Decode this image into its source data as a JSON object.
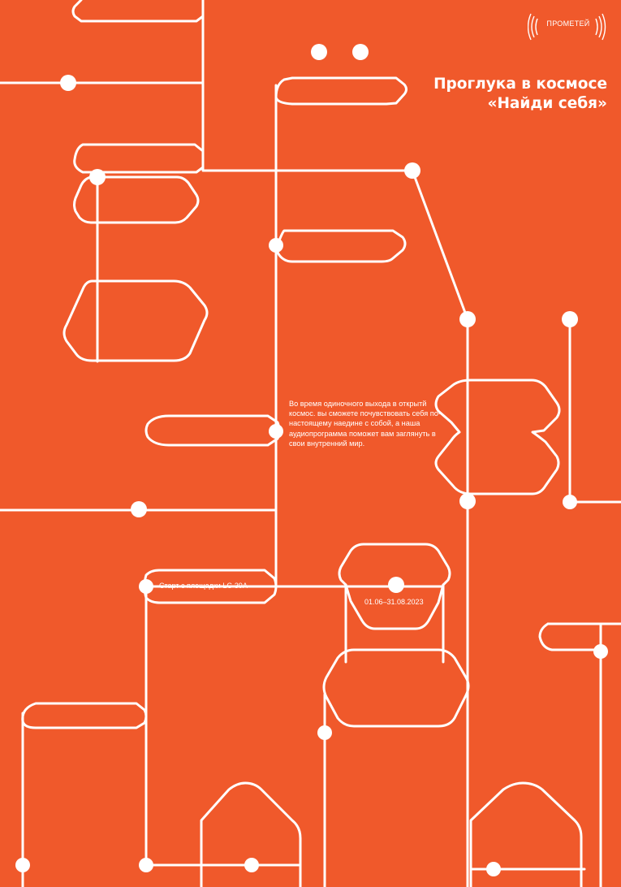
{
  "poster": {
    "background_color": "#f0592b",
    "line_color": "#ffffff",
    "logo": {
      "text": "ПРОМЕТЕЙ",
      "icon": "broadcast-waves-icon"
    },
    "title_line1": "Проглука в космосе",
    "title_line2": "«Найди себя»",
    "description": "Во время одиночного выхода в открытй космос. вы сможете почувствовать себя по-настоящему наедине с собой, а наша аудиопрограмма поможет вам заглянуть в свои внутренний мир.",
    "launch_label": "Старт с площадки LC-39A",
    "dates_label": "01.06–31.08.2023"
  }
}
